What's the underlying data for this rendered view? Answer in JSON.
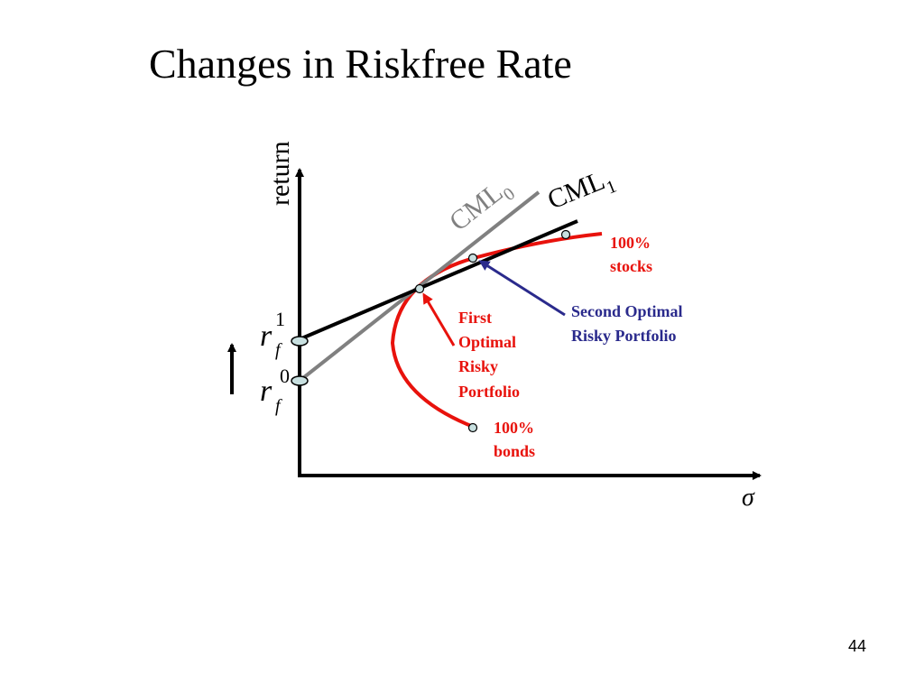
{
  "title": "Changes in Riskfree Rate",
  "page_number": "44",
  "axes": {
    "y_label": "return",
    "x_label": "σ"
  },
  "lines": {
    "cml0": {
      "main": "CML",
      "sub": "0"
    },
    "cml1": {
      "main": "CML",
      "sub": "1"
    }
  },
  "riskfree": {
    "rf1": {
      "main": "r",
      "sub": "f",
      "sup": "1"
    },
    "rf0": {
      "main": "r",
      "sub": "f",
      "sup": "0"
    }
  },
  "labels": {
    "stocks_line1": "100%",
    "stocks_line2": "stocks",
    "bonds_line1": "100%",
    "bonds_line2": "bonds",
    "first_optimal": [
      "First",
      "Optimal",
      "Risky",
      "Portfolio"
    ],
    "second_optimal": [
      "Second Optimal",
      "Risky Portfolio"
    ]
  },
  "colors": {
    "frontier": "#e8120c",
    "cml0": "#808080",
    "cml1": "#000000",
    "second_arrow": "#2a2a8c",
    "red_text": "#e8120c",
    "blue_text": "#2a2a8c",
    "point_fill": "#c8e0e0"
  }
}
